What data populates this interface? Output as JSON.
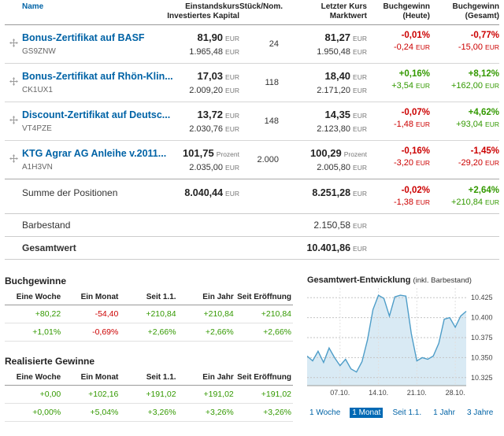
{
  "colors": {
    "positive": "#339900",
    "negative": "#cc0000",
    "link": "#0063a6",
    "accent": "#0069b4"
  },
  "positions_table": {
    "header": {
      "name": "Name",
      "einstand_1": "Einstandskurs",
      "einstand_2": "Investiertes Kapital",
      "stueck": "Stück/Nom.",
      "kurs_1": "Letzter Kurs",
      "kurs_2": "Marktwert",
      "heute_1": "Buchgewinn",
      "heute_2": "(Heute)",
      "gesamt_1": "Buchgewinn",
      "gesamt_2": "(Gesamt)"
    },
    "rows": [
      {
        "name": "Bonus-Zertifikat auf BASF",
        "wkn": "GS9ZNW",
        "einstand": "81,90",
        "einstand_unit": "EUR",
        "invest": "1.965,48",
        "invest_unit": "EUR",
        "stueck": "24",
        "kurs": "81,27",
        "kurs_unit": "EUR",
        "marktwert": "1.950,48",
        "marktwert_unit": "EUR",
        "heute_pct": "-0,01%",
        "heute_abs": "-0,24",
        "heute_unit": "EUR",
        "gesamt_pct": "-0,77%",
        "gesamt_abs": "-15,00",
        "gesamt_unit": "EUR"
      },
      {
        "name": "Bonus-Zertifikat auf Rhön-Klin...",
        "wkn": "CK1UX1",
        "einstand": "17,03",
        "einstand_unit": "EUR",
        "invest": "2.009,20",
        "invest_unit": "EUR",
        "stueck": "118",
        "kurs": "18,40",
        "kurs_unit": "EUR",
        "marktwert": "2.171,20",
        "marktwert_unit": "EUR",
        "heute_pct": "+0,16%",
        "heute_abs": "+3,54",
        "heute_unit": "EUR",
        "gesamt_pct": "+8,12%",
        "gesamt_abs": "+162,00",
        "gesamt_unit": "EUR"
      },
      {
        "name": "Discount-Zertifikat auf Deutsc...",
        "wkn": "VT4PZE",
        "einstand": "13,72",
        "einstand_unit": "EUR",
        "invest": "2.030,76",
        "invest_unit": "EUR",
        "stueck": "148",
        "kurs": "14,35",
        "kurs_unit": "EUR",
        "marktwert": "2.123,80",
        "marktwert_unit": "EUR",
        "heute_pct": "-0,07%",
        "heute_abs": "-1,48",
        "heute_unit": "EUR",
        "gesamt_pct": "+4,62%",
        "gesamt_abs": "+93,04",
        "gesamt_unit": "EUR"
      },
      {
        "name": "KTG Agrar AG Anleihe v.2011...",
        "wkn": "A1H3VN",
        "einstand": "101,75",
        "einstand_unit": "Prozent",
        "invest": "2.035,00",
        "invest_unit": "EUR",
        "stueck": "2.000",
        "kurs": "100,29",
        "kurs_unit": "Prozent",
        "marktwert": "2.005,80",
        "marktwert_unit": "EUR",
        "heute_pct": "-0,16%",
        "heute_abs": "-3,20",
        "heute_unit": "EUR",
        "gesamt_pct": "-1,45%",
        "gesamt_abs": "-29,20",
        "gesamt_unit": "EUR"
      }
    ],
    "summary": {
      "sum_label": "Summe der Positionen",
      "sum_invest": "8.040,44",
      "sum_invest_unit": "EUR",
      "sum_markt": "8.251,28",
      "sum_markt_unit": "EUR",
      "sum_heute_pct": "-0,02%",
      "sum_heute_abs": "-1,38",
      "sum_heute_unit": "EUR",
      "sum_gesamt_pct": "+2,64%",
      "sum_gesamt_abs": "+210,84",
      "sum_gesamt_unit": "EUR",
      "bar_label": "Barbestand",
      "bar_value": "2.150,58",
      "bar_unit": "EUR",
      "total_label": "Gesamtwert",
      "total_value": "10.401,86",
      "total_unit": "EUR"
    }
  },
  "buchgewinne": {
    "title": "Buchgewinne",
    "headers": [
      "Eine Woche",
      "Ein Monat",
      "Seit 1.1.",
      "Ein Jahr",
      "Seit Eröffnung"
    ],
    "row_abs": [
      "+80,22",
      "-54,40",
      "+210,84",
      "+210,84",
      "+210,84"
    ],
    "row_pct": [
      "+1,01%",
      "-0,69%",
      "+2,66%",
      "+2,66%",
      "+2,66%"
    ]
  },
  "realisierte_gewinne": {
    "title": "Realisierte Gewinne",
    "headers": [
      "Eine Woche",
      "Ein Monat",
      "Seit 1.1.",
      "Ein Jahr",
      "Seit Eröffnung"
    ],
    "row_abs": [
      "+0,00",
      "+102,16",
      "+191,02",
      "+191,02",
      "+191,02"
    ],
    "row_pct": [
      "+0,00%",
      "+5,04%",
      "+3,26%",
      "+3,26%",
      "+3,26%"
    ]
  },
  "chart": {
    "title": "Gesamtwert-Entwicklung",
    "subtitle": "(inkl. Barbestand)",
    "periods": [
      "1 Woche",
      "1 Monat",
      "Seit 1.1.",
      "1 Jahr",
      "3 Jahre"
    ],
    "active_period": "1 Monat"
  },
  "chart_data": {
    "type": "area",
    "title": "Gesamtwert-Entwicklung (inkl. Barbestand)",
    "x_tick_labels": [
      "07.10.",
      "14.10.",
      "21.10.",
      "28.10."
    ],
    "x_tick_indices": [
      6,
      13,
      20,
      27
    ],
    "y_ticks": [
      10325,
      10350,
      10375,
      10400,
      10425
    ],
    "y_tick_labels": [
      "10.325",
      "10.350",
      "10.375",
      "10.400",
      "10.425"
    ],
    "ylim": [
      10315,
      10437
    ],
    "values": [
      10352,
      10346,
      10358,
      10344,
      10362,
      10350,
      10340,
      10348,
      10336,
      10332,
      10345,
      10372,
      10410,
      10428,
      10424,
      10402,
      10426,
      10428,
      10427,
      10380,
      10346,
      10350,
      10348,
      10352,
      10368,
      10398,
      10400,
      10388,
      10402,
      10408
    ],
    "grid": true,
    "legend": false
  }
}
